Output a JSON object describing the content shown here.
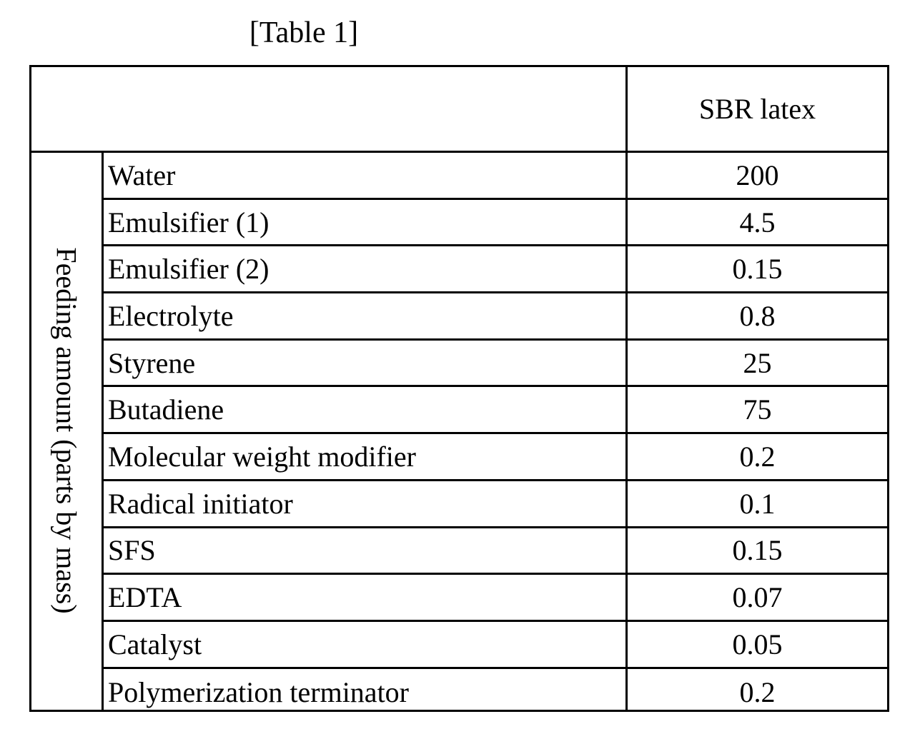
{
  "title": "[Table 1]",
  "table": {
    "column_header": "SBR latex",
    "row_group_label": "Feeding amount (parts by mass)",
    "rows": [
      {
        "name": "Water",
        "value": "200"
      },
      {
        "name": "Emulsifier (1)",
        "value": "4.5"
      },
      {
        "name": "Emulsifier (2)",
        "value": "0.15"
      },
      {
        "name": "Electrolyte",
        "value": "0.8"
      },
      {
        "name": "Styrene",
        "value": "25"
      },
      {
        "name": "Butadiene",
        "value": "75"
      },
      {
        "name": "Molecular weight modifier",
        "value": "0.2"
      },
      {
        "name": "Radical initiator",
        "value": "0.1"
      },
      {
        "name": "SFS",
        "value": "0.15"
      },
      {
        "name": "EDTA",
        "value": "0.07"
      },
      {
        "name": "Catalyst",
        "value": "0.05"
      },
      {
        "name": "Polymerization terminator",
        "value": "0.2"
      }
    ]
  }
}
